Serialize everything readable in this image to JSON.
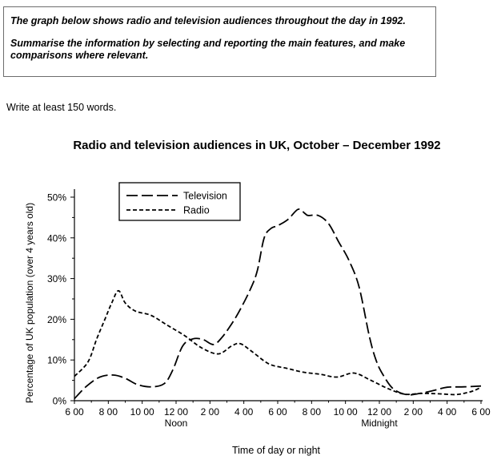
{
  "task": {
    "line1": "The graph below shows radio and television audiences throughout the day in 1992.",
    "line2": "Summarise the information by selecting and reporting the main features, and make comparisons where relevant."
  },
  "instruction": "Write at least 150 words.",
  "chart_data": {
    "type": "line",
    "title": "Radio and television audiences in UK, October – December 1992",
    "xlabel": "Time of day or night",
    "ylabel": "Percentage of UK population (over 4 years old)",
    "ylim": [
      0,
      50
    ],
    "yticks": [
      0,
      10,
      20,
      30,
      40,
      50
    ],
    "ytick_labels": [
      "0%",
      "10%",
      "20%",
      "30%",
      "40%",
      "50%"
    ],
    "xlim": [
      0,
      24
    ],
    "xticks": [
      0,
      2,
      4,
      6,
      8,
      10,
      12,
      14,
      16,
      18,
      20,
      22,
      24
    ],
    "xtick_labels": [
      "6 00",
      "8 00",
      "10 00",
      "12 00",
      "2 00",
      "4 00",
      "6 00",
      "8 00",
      "10 00",
      "12 00",
      "2 00",
      "4 00",
      "6 00"
    ],
    "x_annotations": [
      {
        "x": 6,
        "text": "Noon"
      },
      {
        "x": 18,
        "text": "Midnight"
      }
    ],
    "legend_position": "top-left",
    "grid": false,
    "series": [
      {
        "name": "Television",
        "line_style": "long-dash",
        "x": [
          0,
          0.7,
          1.5,
          2.3,
          3.0,
          3.7,
          4.5,
          5.3,
          5.8,
          6.4,
          7.0,
          7.6,
          8.2,
          8.7,
          9.3,
          9.8,
          10.4,
          10.8,
          11.2,
          11.6,
          12.0,
          12.6,
          13.2,
          13.6,
          13.8,
          14.4,
          15.0,
          15.6,
          16.2,
          16.8,
          17.4,
          17.8,
          18.2,
          18.8,
          19.6,
          20.4,
          21.2,
          22.0,
          23.0,
          24.0
        ],
        "y": [
          0.5,
          3.5,
          5.8,
          6.3,
          5.5,
          4.0,
          3.4,
          4.2,
          7.5,
          13.5,
          15.2,
          15.0,
          13.8,
          15.5,
          19.0,
          22.5,
          27.5,
          32.0,
          40.0,
          42.3,
          43.0,
          44.5,
          47.0,
          46.0,
          45.5,
          45.5,
          43.5,
          39.0,
          34.5,
          28.0,
          16.0,
          10.0,
          6.5,
          3.0,
          1.5,
          1.8,
          2.5,
          3.3,
          3.4,
          3.6
        ]
      },
      {
        "name": "Radio",
        "line_style": "short-dash",
        "x": [
          0,
          0.8,
          1.3,
          1.8,
          2.2,
          2.6,
          3.0,
          3.6,
          4.5,
          5.5,
          6.5,
          7.5,
          8.5,
          9.3,
          9.8,
          10.5,
          11.5,
          12.5,
          13.5,
          14.5,
          15.5,
          16.5,
          17.5,
          18.5,
          19.5,
          20.5,
          21.5,
          22.5,
          23.2,
          23.6,
          24.0
        ],
        "y": [
          6.0,
          9.5,
          15.0,
          20.0,
          24.0,
          27.0,
          24.0,
          22.0,
          21.0,
          18.5,
          16.0,
          13.0,
          11.5,
          13.5,
          14.0,
          12.0,
          9.0,
          8.0,
          7.0,
          6.5,
          5.8,
          6.8,
          5.0,
          3.0,
          1.6,
          1.8,
          1.7,
          1.5,
          2.0,
          2.5,
          3.3
        ]
      }
    ]
  }
}
